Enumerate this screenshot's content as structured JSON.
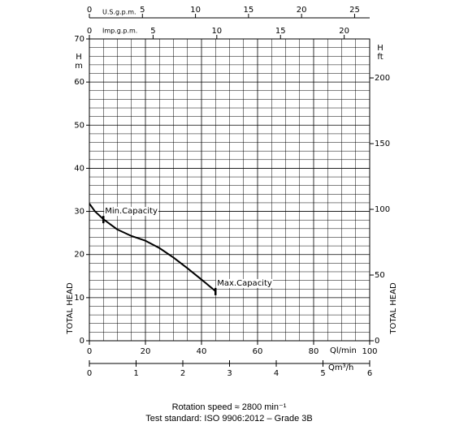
{
  "chart_data": {
    "type": "line",
    "x_label": "Ql/min",
    "y_label": "TOTAL HEAD",
    "y_unit": [
      "H",
      "m"
    ],
    "x": [
      0,
      2,
      5,
      10,
      15,
      20,
      25,
      30,
      35,
      40,
      45
    ],
    "values": [
      31.8,
      30,
      28.2,
      25.8,
      24.3,
      23.2,
      21.5,
      19.3,
      16.8,
      14.2,
      11.5
    ],
    "color": "#000000",
    "xlim": [
      0,
      100
    ],
    "xticks": [
      0,
      20,
      40,
      60,
      80,
      100
    ],
    "ylim": [
      0,
      70
    ],
    "yticks": [
      0,
      10,
      20,
      30,
      40,
      50,
      60,
      70
    ],
    "grid": true,
    "annotations": [
      {
        "text": "Min.Capacity",
        "x": 5,
        "y": 28.2
      },
      {
        "text": "Max.Capacity",
        "x": 45,
        "y": 11.5
      }
    ],
    "top_axes": [
      {
        "label": "U.S.g.p.m.",
        "lim": [
          0,
          26.42
        ],
        "ticks": [
          0,
          5,
          10,
          15,
          20,
          25
        ]
      },
      {
        "label": "Imp.g.p.m.",
        "lim": [
          0,
          22
        ],
        "ticks": [
          0,
          5,
          10,
          15,
          20
        ]
      }
    ],
    "bottom_axis": {
      "label": "Qm³/h",
      "lim": [
        0,
        6
      ],
      "ticks": [
        0,
        1,
        2,
        3,
        4,
        5,
        6
      ]
    },
    "right_axis": {
      "label": "TOTAL HEAD",
      "unit": [
        "H",
        "ft"
      ],
      "lim": [
        0,
        229.66
      ],
      "ticks": [
        0,
        50,
        100,
        150,
        200
      ]
    },
    "notes": [
      "Rotation speed ≈ 2800 min⁻¹",
      "Test standard: ISO 9906:2012 – Grade 3B"
    ]
  }
}
